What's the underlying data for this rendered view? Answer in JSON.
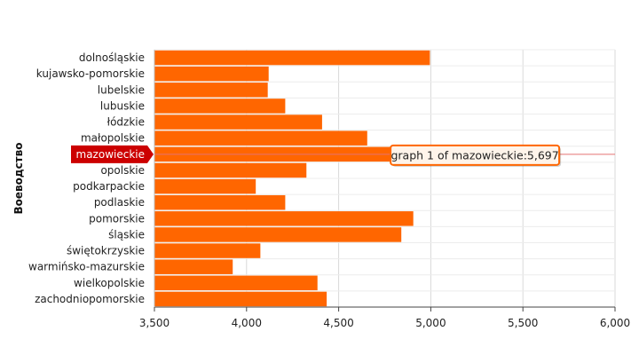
{
  "chart_data": {
    "type": "bar",
    "orientation": "horizontal",
    "ylabel": "Воеводство",
    "xlabel": "",
    "xlim": [
      3500,
      6000
    ],
    "xticks": [
      3500,
      4000,
      4500,
      5000,
      5500,
      6000
    ],
    "xtick_labels": [
      "3,500",
      "4,000",
      "4,500",
      "5,000",
      "5,500",
      "6,000"
    ],
    "grid": true,
    "bar_color": "#ff6600",
    "highlight_color": "#cc0000",
    "categories": [
      "dolnośląskie",
      "kujawsko-pomorskie",
      "lubelskie",
      "lubuskie",
      "łódzkie",
      "małopolskie",
      "mazowieckie",
      "opolskie",
      "podkarpackie",
      "podlaskie",
      "pomorskie",
      "śląskie",
      "świętokrzyskie",
      "warmińsko-mazurskie",
      "wielkopolskie",
      "zachodniopomorskie"
    ],
    "values": [
      4995,
      4120,
      4115,
      4210,
      4410,
      4655,
      5697,
      4325,
      4050,
      4210,
      4905,
      4840,
      4075,
      3925,
      4385,
      4435
    ],
    "highlighted_category": "mazowieckie",
    "tooltip": "graph 1 of mazowieckie:5,697"
  }
}
